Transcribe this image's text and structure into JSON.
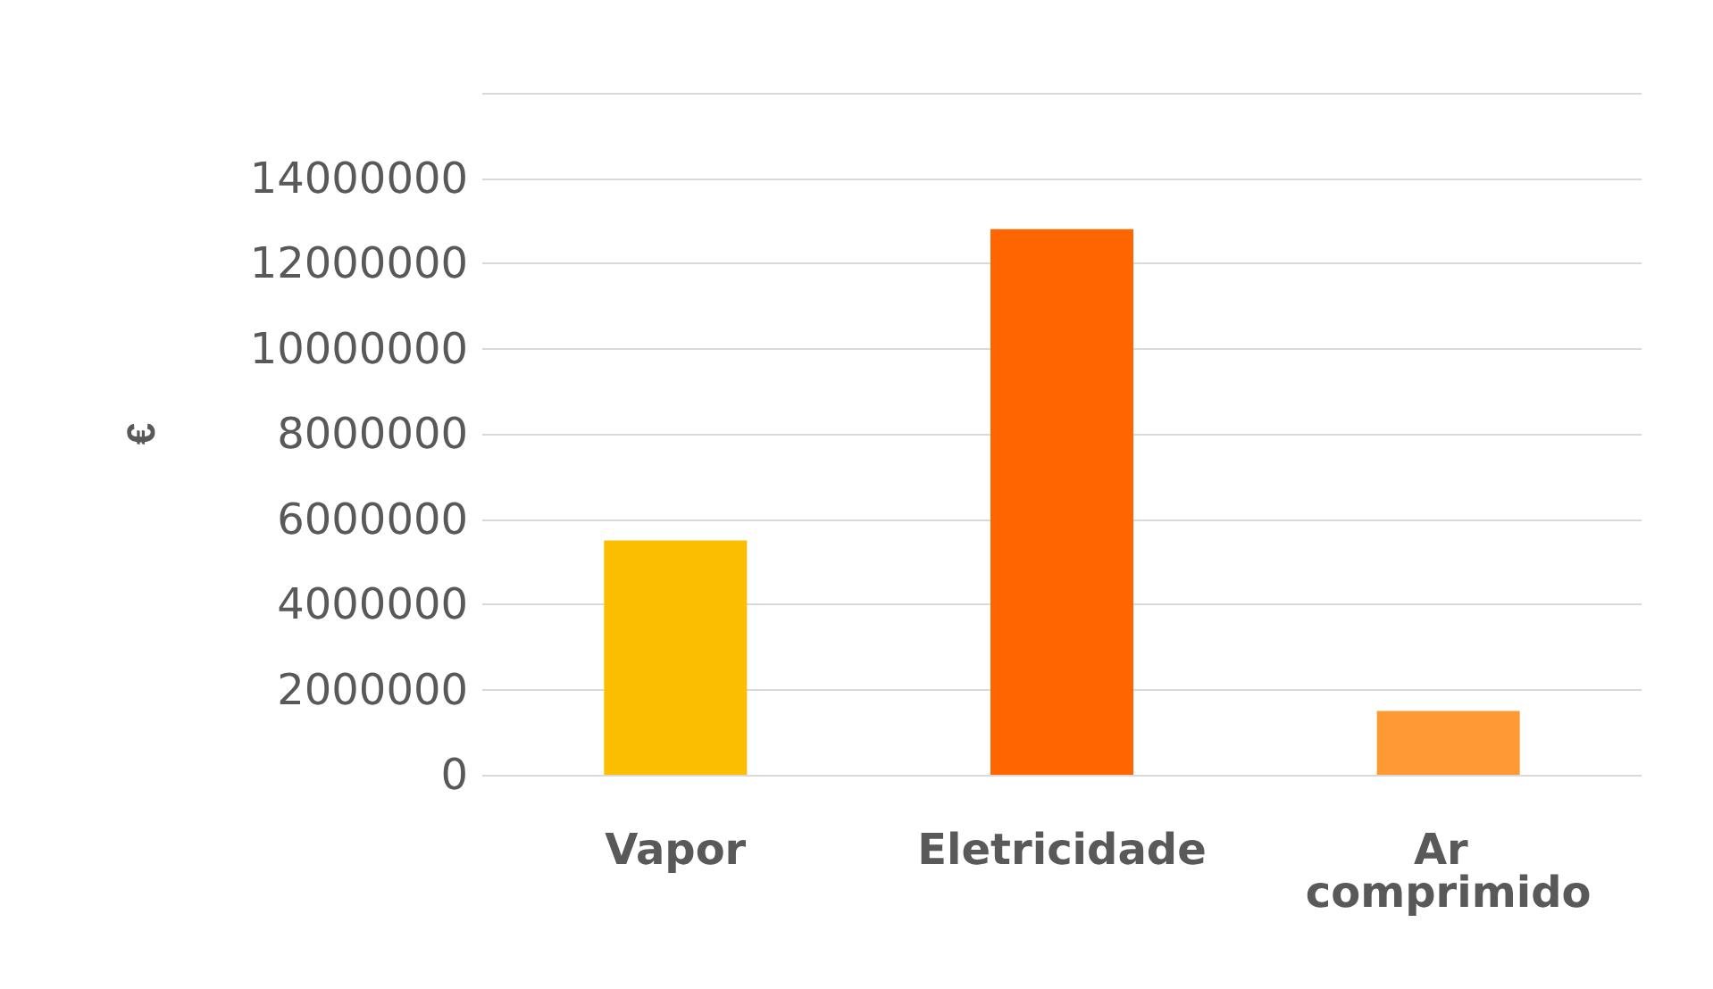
{
  "chart_data": {
    "type": "bar",
    "ylabel": "€",
    "categories": [
      "Vapor",
      "Eletricidade",
      "Ar comprimido"
    ],
    "values": [
      5500000,
      12800000,
      1500000
    ],
    "colors": [
      "#fcbe00",
      "#ff6600",
      "#fe9a33"
    ],
    "ylim": [
      0,
      16000000
    ],
    "yticks": [
      0,
      2000000,
      4000000,
      6000000,
      8000000,
      10000000,
      12000000,
      14000000,
      {
        "value": 16000000,
        "label": null
      }
    ],
    "grid": "y"
  }
}
